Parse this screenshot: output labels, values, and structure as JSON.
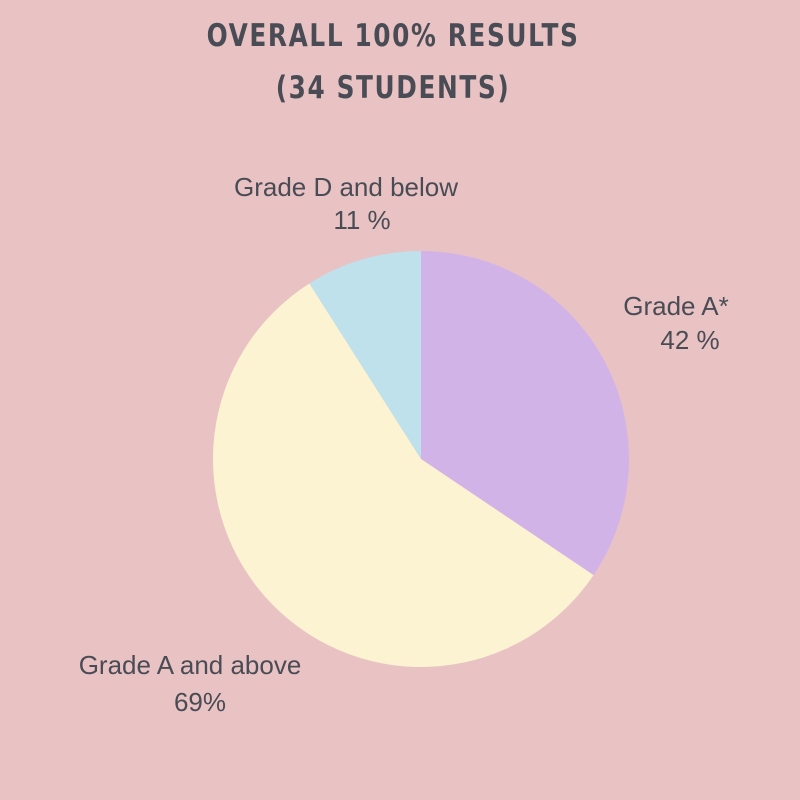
{
  "chart_data": {
    "type": "pie",
    "title": [
      "OVERALL 100% RESULTS",
      "(34 STUDENTS)"
    ],
    "slices": [
      {
        "name": "Grade A*",
        "value": 42,
        "label": "42 %",
        "color": "#D1B3E8"
      },
      {
        "name": "Grade A and above",
        "value": 69,
        "label": "69%",
        "color": "#FCF3D3"
      },
      {
        "name": "Grade D and below",
        "value": 11,
        "label": "11 %",
        "color": "#BEE1EB"
      }
    ],
    "start_angle": "12 o'clock",
    "direction": "clockwise",
    "background": "#E9C3C3"
  }
}
